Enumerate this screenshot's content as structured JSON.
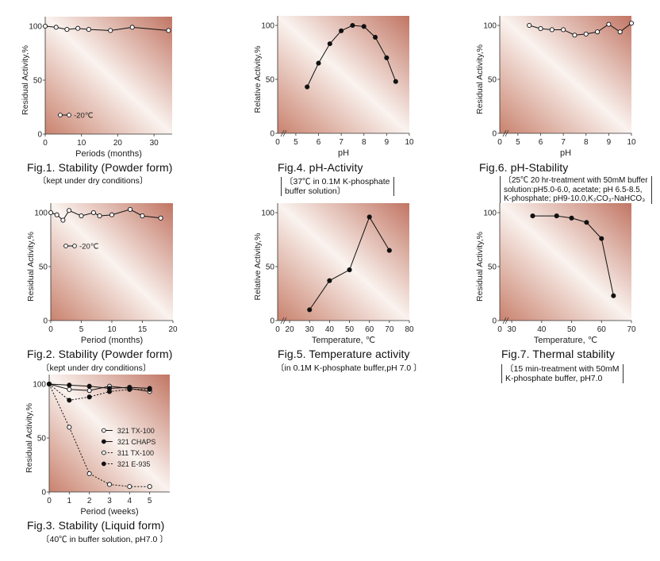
{
  "chart_data": [
    {
      "id": "fig1",
      "type": "line",
      "title": "Fig.1. Stability (Powder form)",
      "note": [
        "〔kept under dry conditions〕"
      ],
      "xlabel": "Periods (months)",
      "ylabel": "Residual Activity,%",
      "xlim": [
        0,
        35
      ],
      "ylim": [
        0,
        100
      ],
      "xticks": [
        0,
        10,
        20,
        30
      ],
      "yticks": [
        0,
        50,
        100
      ],
      "axis_break": false,
      "legend": [
        {
          "label": "-20℃",
          "marker": "open",
          "dash": false
        }
      ],
      "series": [
        {
          "marker": "open",
          "dash": false,
          "x": [
            0,
            3,
            6,
            9,
            12,
            18,
            24,
            34
          ],
          "y": [
            100,
            99,
            97,
            98,
            97,
            96,
            99,
            96
          ]
        }
      ]
    },
    {
      "id": "fig2",
      "type": "line",
      "title": "Fig.2. Stability (Powder form)",
      "note": [
        "〔kept under dry conditions〕"
      ],
      "xlabel": "Period (months)",
      "ylabel": "Residual Activity,%",
      "xlim": [
        0,
        20
      ],
      "ylim": [
        0,
        100
      ],
      "xticks": [
        0,
        5,
        10,
        15,
        20
      ],
      "yticks": [
        0,
        50,
        100
      ],
      "axis_break": false,
      "legend": [
        {
          "label": "-20℃",
          "marker": "open",
          "dash": false
        }
      ],
      "series": [
        {
          "marker": "open",
          "dash": false,
          "x": [
            0,
            1,
            2,
            3,
            5,
            7,
            8,
            10,
            13,
            15,
            18
          ],
          "y": [
            100,
            98,
            93,
            102,
            97,
            100,
            97,
            98,
            103,
            97,
            95
          ]
        }
      ]
    },
    {
      "id": "fig3",
      "type": "line",
      "title": "Fig.3. Stability (Liquid form)",
      "note": [
        "〔40℃ in buffer solution, pH7.0 〕"
      ],
      "xlabel": "Period (weeks)",
      "ylabel": "Residual Activity,%",
      "xlim": [
        0,
        6
      ],
      "ylim": [
        0,
        100
      ],
      "xticks": [
        0,
        1,
        2,
        3,
        4,
        5
      ],
      "yticks": [
        0,
        50,
        100
      ],
      "axis_break": false,
      "legend": [
        {
          "label": "321 TX-100",
          "marker": "open",
          "dash": false
        },
        {
          "label": "321 CHAPS",
          "marker": "filled",
          "dash": false
        },
        {
          "label": "311 TX-100",
          "marker": "open",
          "dash": true
        },
        {
          "label": "321 E-935",
          "marker": "filled",
          "dash": true
        }
      ],
      "series": [
        {
          "name": "321 TX-100",
          "marker": "open",
          "dash": false,
          "x": [
            0,
            1,
            2,
            3,
            4,
            5
          ],
          "y": [
            100,
            95,
            94,
            98,
            96,
            93
          ]
        },
        {
          "name": "321 CHAPS",
          "marker": "filled",
          "dash": false,
          "x": [
            0,
            1,
            2,
            3,
            4,
            5
          ],
          "y": [
            100,
            99,
            98,
            96,
            97,
            96
          ]
        },
        {
          "name": "311 TX-100",
          "marker": "open",
          "dash": true,
          "x": [
            0,
            1,
            2,
            3,
            4,
            5
          ],
          "y": [
            100,
            60,
            17,
            7,
            5,
            5
          ]
        },
        {
          "name": "321 E-935",
          "marker": "filled",
          "dash": true,
          "x": [
            0,
            1,
            2,
            3,
            4,
            5
          ],
          "y": [
            100,
            85,
            88,
            93,
            95,
            95
          ]
        }
      ]
    },
    {
      "id": "fig4",
      "type": "line",
      "title": "Fig.4. pH-Activity",
      "note": [
        "〔37℃ in 0.1M K-phosphate",
        "buffer solution〕"
      ],
      "xlabel": "pH",
      "ylabel": "Relative Activity,%",
      "xlim": [
        4.2,
        10
      ],
      "ylim": [
        0,
        100
      ],
      "xticks": [
        5,
        6,
        7,
        8,
        9,
        10
      ],
      "yticks": [
        0,
        50,
        100
      ],
      "axis_break": true,
      "legend": [],
      "series": [
        {
          "marker": "filled",
          "dash": false,
          "x": [
            5.5,
            6.0,
            6.5,
            7.0,
            7.5,
            8.0,
            8.5,
            9.0,
            9.4
          ],
          "y": [
            43,
            65,
            83,
            95,
            100,
            99,
            89,
            70,
            48
          ]
        }
      ]
    },
    {
      "id": "fig5",
      "type": "line",
      "title": "Fig.5. Temperature activity",
      "note": [
        "〔in 0.1M K-phosphate buffer,pH 7.0 〕"
      ],
      "xlabel": "Temperature, ℃",
      "ylabel": "Relative Activity,%",
      "xlim": [
        14,
        80
      ],
      "ylim": [
        0,
        100
      ],
      "xticks": [
        20,
        30,
        40,
        50,
        60,
        70,
        80
      ],
      "yticks": [
        0,
        50,
        100
      ],
      "axis_break": true,
      "legend": [],
      "series": [
        {
          "marker": "filled",
          "dash": false,
          "x": [
            30,
            40,
            50,
            60,
            70
          ],
          "y": [
            10,
            37,
            47,
            96,
            65
          ]
        }
      ]
    },
    {
      "id": "fig6",
      "type": "line",
      "title": "Fig.6. pH-Stability",
      "note": [
        "〔25℃ 20 hr-treatment with 50mM buffer",
        "solution:pH5.0-6.0, acetate; pH 6.5-8.5,",
        "K-phosphate; pH9-10.0,K₂CO₃-NaHCO₃"
      ],
      "xlabel": "pH",
      "ylabel": "Residual Activity,%",
      "xlim": [
        4.2,
        10
      ],
      "ylim": [
        0,
        100
      ],
      "xticks": [
        5,
        6,
        7,
        8,
        9,
        10
      ],
      "yticks": [
        0,
        50,
        100
      ],
      "axis_break": true,
      "legend": [],
      "series": [
        {
          "marker": "open",
          "dash": false,
          "x": [
            5.5,
            6.0,
            6.5,
            7.0,
            7.5,
            8.0,
            8.5,
            9.0,
            9.5,
            10.0
          ],
          "y": [
            100,
            97,
            96,
            96,
            91,
            92,
            94,
            101,
            94,
            102
          ]
        }
      ]
    },
    {
      "id": "fig7",
      "type": "line",
      "title": "Fig.7. Thermal stability",
      "note": [
        "〔15 min-treatment with    50mM",
        "K-phosphate buffer, pH7.0"
      ],
      "xlabel": "Temperature, ℃",
      "ylabel": "Residual Activity,%",
      "xlim": [
        26,
        70
      ],
      "ylim": [
        0,
        100
      ],
      "xticks": [
        30,
        40,
        50,
        60,
        70
      ],
      "yticks": [
        0,
        50,
        100
      ],
      "axis_break": true,
      "legend": [],
      "series": [
        {
          "marker": "filled",
          "dash": false,
          "x": [
            37,
            45,
            50,
            55,
            60,
            64
          ],
          "y": [
            97,
            97,
            95,
            91,
            76,
            23
          ]
        }
      ]
    }
  ]
}
